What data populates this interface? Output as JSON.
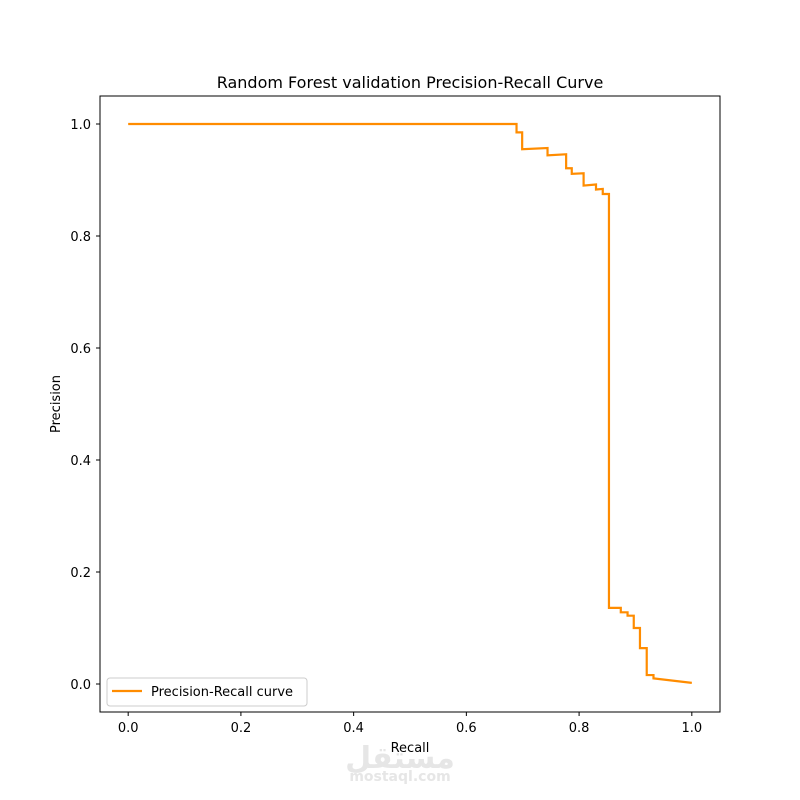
{
  "chart_data": {
    "type": "line",
    "title": "Random Forest validation Precision-Recall Curve",
    "xlabel": "Recall",
    "ylabel": "Precision",
    "xlim": [
      -0.05,
      1.05
    ],
    "ylim": [
      -0.05,
      1.05
    ],
    "xticks": [
      0.0,
      0.2,
      0.4,
      0.6,
      0.8,
      1.0
    ],
    "xtick_labels": [
      "0.0",
      "0.2",
      "0.4",
      "0.6",
      "0.8",
      "1.0"
    ],
    "yticks": [
      0.0,
      0.2,
      0.4,
      0.6,
      0.8,
      1.0
    ],
    "ytick_labels": [
      "0.0",
      "0.2",
      "0.4",
      "0.6",
      "0.8",
      "1.0"
    ],
    "grid": false,
    "legend_position": "lower-left",
    "series": [
      {
        "name": "Precision-Recall curve",
        "color": "#ff8c00",
        "step": true,
        "points": [
          [
            0.0,
            1.0
          ],
          [
            0.689,
            1.0
          ],
          [
            0.689,
            0.985
          ],
          [
            0.699,
            0.985
          ],
          [
            0.699,
            0.955
          ],
          [
            0.744,
            0.957
          ],
          [
            0.744,
            0.944
          ],
          [
            0.777,
            0.946
          ],
          [
            0.777,
            0.921
          ],
          [
            0.787,
            0.921
          ],
          [
            0.787,
            0.911
          ],
          [
            0.808,
            0.912
          ],
          [
            0.808,
            0.89
          ],
          [
            0.83,
            0.892
          ],
          [
            0.83,
            0.883
          ],
          [
            0.842,
            0.884
          ],
          [
            0.842,
            0.875
          ],
          [
            0.853,
            0.875
          ],
          [
            0.853,
            0.136
          ],
          [
            0.874,
            0.136
          ],
          [
            0.874,
            0.128
          ],
          [
            0.886,
            0.128
          ],
          [
            0.886,
            0.122
          ],
          [
            0.897,
            0.122
          ],
          [
            0.897,
            0.1
          ],
          [
            0.908,
            0.1
          ],
          [
            0.908,
            0.064
          ],
          [
            0.92,
            0.064
          ],
          [
            0.92,
            0.016
          ],
          [
            0.932,
            0.016
          ],
          [
            0.932,
            0.01
          ],
          [
            1.0,
            0.002
          ]
        ]
      }
    ]
  },
  "watermark": {
    "brand": "مستقل",
    "site": "mostaql.com"
  }
}
